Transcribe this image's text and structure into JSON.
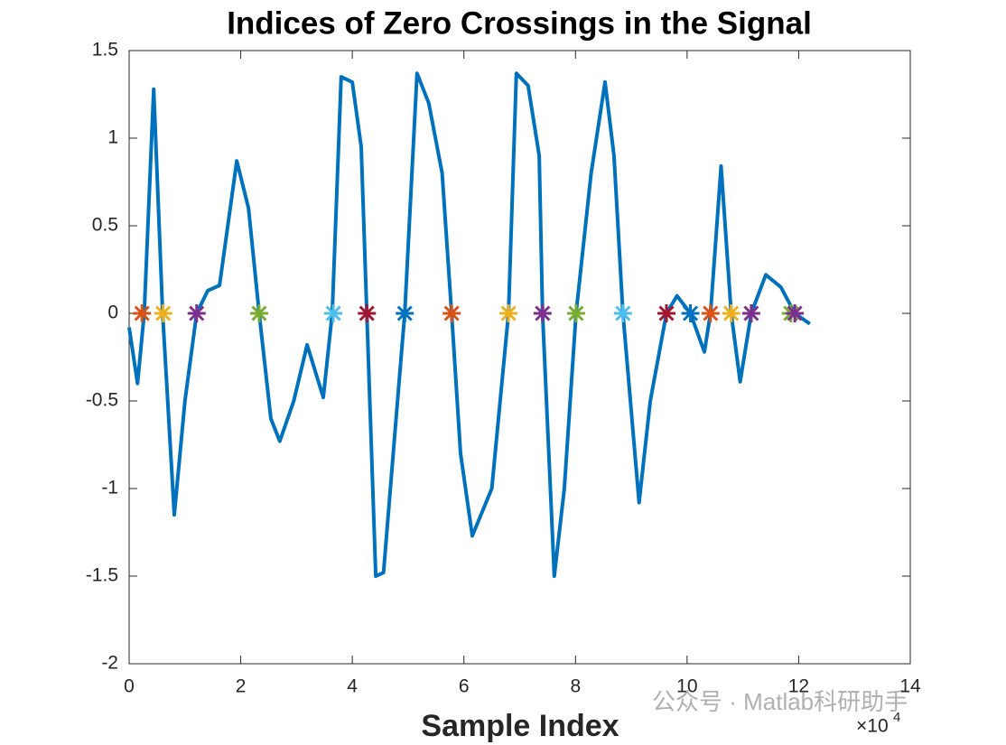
{
  "chart_data": {
    "type": "line",
    "title": "Indices of Zero Crossings in the Signal",
    "xlabel": "Sample Index",
    "x_multiplier": "×10",
    "x_multiplier_exponent": "4",
    "xlim": [
      0,
      14
    ],
    "xticks": [
      0,
      2,
      4,
      6,
      8,
      10,
      12,
      14
    ],
    "ylim": [
      -2,
      1.5
    ],
    "yticks": [
      -2,
      -1.5,
      -1,
      -0.5,
      0,
      0.5,
      1,
      1.5
    ],
    "series": [
      {
        "color": "#0072bd",
        "x": [
          0,
          0.15,
          0.27,
          0.44,
          0.6,
          0.81,
          1.0,
          1.21,
          1.41,
          1.62,
          1.93,
          2.14,
          2.33,
          2.54,
          2.7,
          2.95,
          3.19,
          3.48,
          3.64,
          3.8,
          4.0,
          4.16,
          4.26,
          4.42,
          4.56,
          4.81,
          4.94,
          5.16,
          5.37,
          5.61,
          5.78,
          5.94,
          6.15,
          6.5,
          6.8,
          6.94,
          7.15,
          7.35,
          7.41,
          7.62,
          7.8,
          8.01,
          8.28,
          8.53,
          8.69,
          8.85,
          9.14,
          9.34,
          9.63,
          9.82,
          10.06,
          10.31,
          10.42,
          10.61,
          10.79,
          10.95,
          11.15,
          11.41,
          11.68,
          11.93,
          12.2
        ],
        "values": [
          -0.08,
          -0.4,
          0,
          1.28,
          0,
          -1.15,
          -0.5,
          0,
          0.13,
          0.16,
          0.87,
          0.6,
          0,
          -0.6,
          -0.73,
          -0.5,
          -0.18,
          -0.48,
          0,
          1.35,
          1.32,
          0.95,
          0,
          -1.5,
          -1.48,
          -0.5,
          0,
          1.37,
          1.2,
          0.8,
          0,
          -0.8,
          -1.27,
          -1.0,
          0,
          1.37,
          1.3,
          0.9,
          0,
          -1.5,
          -1.0,
          0,
          0.8,
          1.32,
          0.9,
          0,
          -1.08,
          -0.5,
          0,
          0.1,
          0,
          -0.22,
          0,
          0.84,
          0,
          -0.39,
          0,
          0.22,
          0.15,
          0,
          -0.06
        ]
      }
    ],
    "zero_crossings": {
      "x": [
        0.23,
        0.61,
        1.21,
        2.33,
        3.66,
        4.26,
        4.94,
        5.78,
        6.8,
        7.41,
        8.01,
        8.85,
        9.63,
        10.06,
        10.42,
        10.79,
        11.15,
        11.86,
        11.93
      ],
      "values": [
        0,
        0,
        0,
        0,
        0,
        0,
        0,
        0,
        0,
        0,
        0,
        0,
        0,
        0,
        0,
        0,
        0,
        0,
        0
      ],
      "colors": [
        "#d95319",
        "#edb120",
        "#7e2f8e",
        "#77ac30",
        "#4dbeee",
        "#a2142f",
        "#0072bd",
        "#d95319",
        "#edb120",
        "#7e2f8e",
        "#77ac30",
        "#4dbeee",
        "#a2142f",
        "#0072bd",
        "#d95319",
        "#edb120",
        "#7e2f8e",
        "#77ac30",
        "#7e2f8e"
      ]
    },
    "watermark": "公众号 · Matlab科研助手"
  }
}
